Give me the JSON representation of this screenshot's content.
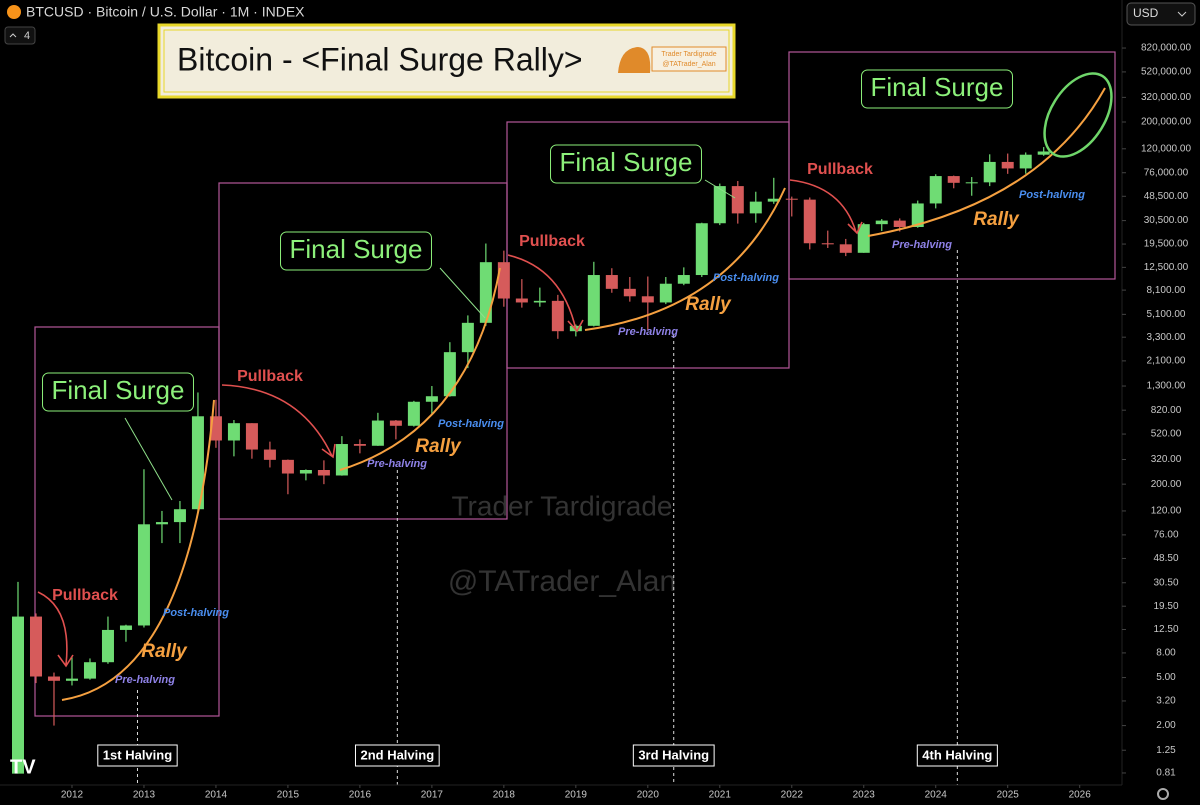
{
  "header": {
    "symbol": "BTCUSD · Bitcoin / U.S. Dollar · 1M · INDEX",
    "indicator_count": 4,
    "currency": "USD"
  },
  "banner": {
    "title": "Bitcoin - <Final Surge Rally>",
    "logo_name": "Trader Tardigrade",
    "logo_handle": "@TATrader_Alan"
  },
  "watermarks": [
    "Trader Tardigrade",
    "@TATrader_Alan"
  ],
  "chart_data": {
    "type": "candlestick",
    "log_scale": true,
    "xlim": [
      2011,
      2026.56
    ],
    "xticks": [
      2012,
      2013,
      2014,
      2015,
      2016,
      2017,
      2018,
      2019,
      2020,
      2021,
      2022,
      2023,
      2024,
      2025,
      2026
    ],
    "ylim": [
      0.644,
      2050000
    ],
    "yticks": [
      {
        "value": 820000,
        "label": "820,000.00"
      },
      {
        "value": 520000,
        "label": "520,000.00"
      },
      {
        "value": 320000,
        "label": "320,000.00"
      },
      {
        "value": 200000,
        "label": "200,000.00"
      },
      {
        "value": 120000,
        "label": "120,000.00"
      },
      {
        "value": 76000,
        "label": "76,000.00"
      },
      {
        "value": 48500,
        "label": "48,500.00"
      },
      {
        "value": 30500,
        "label": "30,500.00"
      },
      {
        "value": 19500,
        "label": "19,500.00"
      },
      {
        "value": 12500,
        "label": "12,500.00"
      },
      {
        "value": 8100,
        "label": "8,100.00"
      },
      {
        "value": 5100,
        "label": "5,100.00"
      },
      {
        "value": 3300,
        "label": "3,300.00"
      },
      {
        "value": 2100,
        "label": "2,100.00"
      },
      {
        "value": 1300,
        "label": "1,300.00"
      },
      {
        "value": 820,
        "label": "820.00"
      },
      {
        "value": 520,
        "label": "520.00"
      },
      {
        "value": 320,
        "label": "320.00"
      },
      {
        "value": 200,
        "label": "200.00"
      },
      {
        "value": 120,
        "label": "120.00"
      },
      {
        "value": 76,
        "label": "76.00"
      },
      {
        "value": 48.5,
        "label": "48.50"
      },
      {
        "value": 30.5,
        "label": "30.50"
      },
      {
        "value": 19.5,
        "label": "19.50"
      },
      {
        "value": 12.5,
        "label": "12.50"
      },
      {
        "value": 8,
        "label": "8.00"
      },
      {
        "value": 5,
        "label": "5.00"
      },
      {
        "value": 3.2,
        "label": "3.20"
      },
      {
        "value": 2,
        "label": "2.00"
      },
      1.25,
      0.81
    ],
    "up_color": "#6fdc74",
    "down_color": "#d65b5b",
    "x": [
      2011.25,
      2011.5,
      2011.75,
      2012.0,
      2012.25,
      2012.5,
      2012.75,
      2013.0,
      2013.25,
      2013.5,
      2013.75,
      2014.0,
      2014.25,
      2014.5,
      2014.75,
      2015.0,
      2015.25,
      2015.5,
      2015.75,
      2016.0,
      2016.25,
      2016.5,
      2016.75,
      2017.0,
      2017.25,
      2017.5,
      2017.75,
      2018.0,
      2018.25,
      2018.5,
      2018.75,
      2019.0,
      2019.25,
      2019.5,
      2019.75,
      2020.0,
      2020.25,
      2020.5,
      2020.75,
      2021.0,
      2021.25,
      2021.5,
      2021.75,
      2022.0,
      2022.25,
      2022.5,
      2022.75,
      2023.0,
      2023.25,
      2023.5,
      2023.75,
      2024.0,
      2024.25,
      2024.5,
      2024.75,
      2025.0,
      2025.25,
      2025.5
    ],
    "open": [
      0.8,
      16,
      5.1,
      4.7,
      4.9,
      6.7,
      12.4,
      13.5,
      93,
      97,
      124,
      730,
      460,
      640,
      387,
      318,
      245,
      262,
      236,
      430,
      416,
      673,
      609,
      963,
      1070,
      2480,
      4340,
      13800,
      6900,
      6400,
      6600,
      3700,
      4100,
      10800,
      8300,
      7200,
      6400,
      9150,
      10800,
      29000,
      58900,
      35000,
      43800,
      46300,
      45500,
      19800,
      19400,
      16500,
      28500,
      30500,
      27000,
      42300,
      71300,
      62700,
      63300,
      93400,
      82500,
      107200
    ],
    "high": [
      31,
      17,
      5.5,
      7.4,
      7.2,
      16,
      13.7,
      266,
      120,
      145,
      1150,
      1000,
      680,
      640,
      450,
      320,
      265,
      315,
      500,
      470,
      780,
      680,
      980,
      1300,
      3000,
      5000,
      19700,
      17200,
      9990,
      8500,
      7400,
      4200,
      13900,
      12300,
      10400,
      10500,
      10400,
      12500,
      29300,
      61800,
      64900,
      52900,
      69000,
      48200,
      47400,
      25200,
      21500,
      29200,
      31400,
      31800,
      44700,
      73800,
      72000,
      70000,
      108000,
      109600,
      111900,
      124000
    ],
    "low": [
      0.8,
      4.5,
      2,
      4.3,
      4.8,
      6.5,
      9.9,
      13,
      65,
      65,
      115,
      400,
      340,
      325,
      275,
      165,
      215,
      200,
      235,
      360,
      415,
      470,
      600,
      750,
      1060,
      1830,
      4100,
      5900,
      5800,
      5900,
      3200,
      3350,
      4050,
      7700,
      6500,
      3800,
      6200,
      8900,
      10400,
      28000,
      28800,
      29300,
      42000,
      33000,
      17600,
      18100,
      15500,
      16500,
      25000,
      24800,
      26600,
      38500,
      56500,
      49000,
      58900,
      74400,
      74600,
      105000
    ],
    "close": [
      16,
      5.1,
      4.7,
      4.9,
      6.7,
      12.4,
      13.5,
      93,
      97,
      124,
      730,
      460,
      640,
      387,
      318,
      245,
      262,
      236,
      430,
      416,
      673,
      609,
      963,
      1070,
      2480,
      4340,
      13800,
      6900,
      6400,
      6600,
      3700,
      4100,
      10800,
      8300,
      7200,
      6400,
      9150,
      10800,
      29000,
      58900,
      35000,
      43800,
      46300,
      45500,
      19800,
      19400,
      16500,
      28500,
      30500,
      27000,
      42300,
      71300,
      62700,
      63300,
      93400,
      82500,
      107200,
      114000
    ],
    "halvings": [
      {
        "label": "1st Halving",
        "x": 2012.91
      },
      {
        "label": "2nd Halving",
        "x": 2016.52
      },
      {
        "label": "3rd Halving",
        "x": 2020.36
      },
      {
        "label": "4th Halving",
        "x": 2024.3
      }
    ],
    "annotations": {
      "final_surge": [
        "Final Surge",
        "Final Surge",
        "Final Surge",
        "Final Surge"
      ],
      "pullback": [
        "Pullback",
        "Pullback",
        "Pullback",
        "Pullback"
      ],
      "rally": [
        "Rally",
        "Rally",
        "Rally",
        "Rally"
      ],
      "pre_halving": [
        "Pre-halving",
        "Pre-halving",
        "Pre-halving",
        "Pre-halving"
      ],
      "post_halving": [
        "Post-halving",
        "Post-halving",
        "Post-halving",
        "Post-halving"
      ]
    }
  }
}
